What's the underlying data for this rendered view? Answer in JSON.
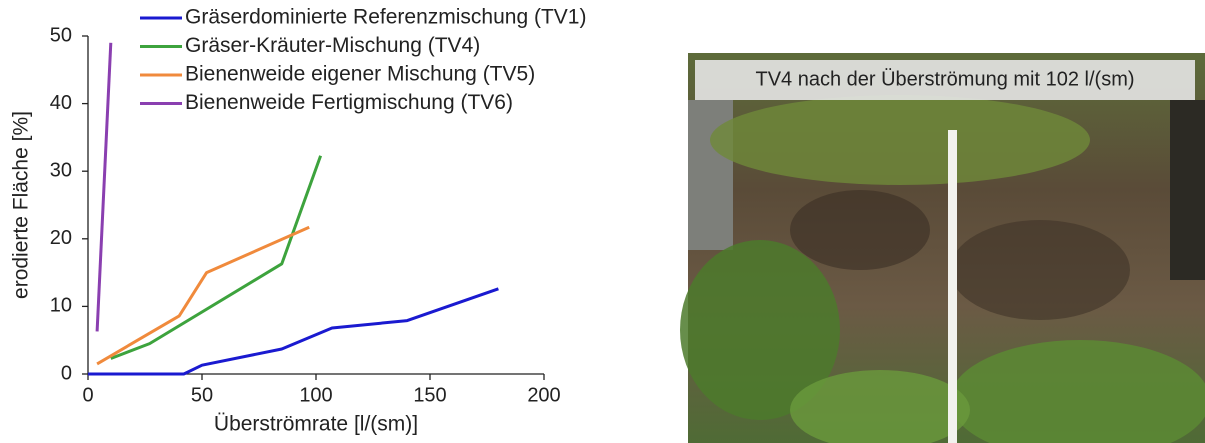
{
  "chart_data": {
    "type": "line",
    "x_label": "Überströmrate [l/(sm)]",
    "y_label": "erodierte Fläche [%]",
    "xlim": [
      0,
      200
    ],
    "xticks": [
      0,
      50,
      100,
      150,
      200
    ],
    "ylim": [
      0,
      50
    ],
    "yticks": [
      0,
      10,
      20,
      30,
      40,
      50
    ],
    "legend": "top",
    "series": [
      {
        "name": "Gräserdominierte Referenzmischung (TV1)",
        "color": "#1a1ad0",
        "x": [
          0,
          42,
          50,
          85,
          107,
          140,
          180
        ],
        "values": [
          0,
          0,
          1.3,
          3.7,
          6.8,
          7.9,
          12.6
        ]
      },
      {
        "name": "Gräser-Kräuter-Mischung (TV4)",
        "color": "#3da33d",
        "x": [
          10,
          27,
          85,
          102
        ],
        "values": [
          2.3,
          4.5,
          16.3,
          32.3
        ]
      },
      {
        "name": "Bienenweide eigener Mischung (TV5)",
        "color": "#f08a3c",
        "x": [
          4,
          40,
          52,
          97
        ],
        "values": [
          1.5,
          8.6,
          15,
          21.7
        ]
      },
      {
        "name": "Bienenweide Fertigmischung (TV6)",
        "color": "#8a3fb0",
        "x": [
          4,
          10
        ],
        "values": [
          6.3,
          49
        ]
      }
    ]
  },
  "image": {
    "caption": "TV4 nach der Überströmung mit 102 l/(sm)"
  }
}
